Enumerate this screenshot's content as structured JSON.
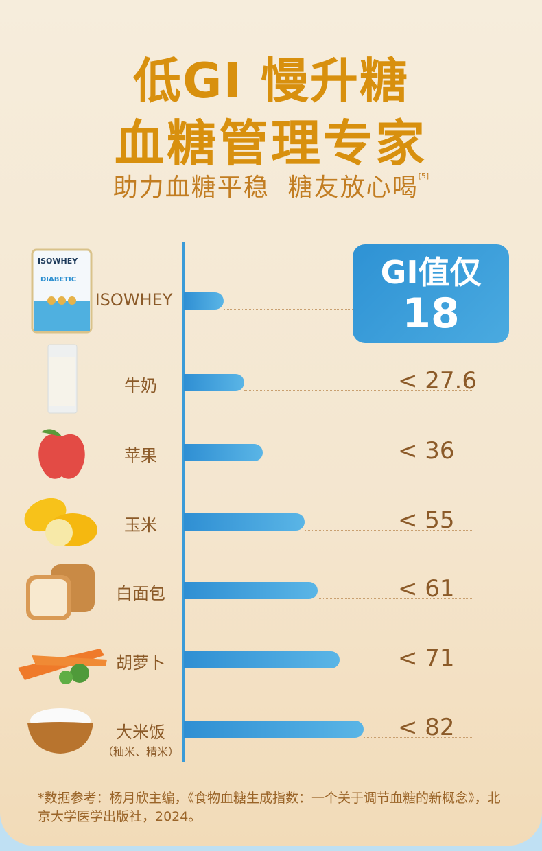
{
  "header": {
    "title_line1": "低GI 慢升糖",
    "title_line2": "血糖管理专家",
    "subtitle": "助力血糖平稳  糖友放心喝",
    "subtitle_ref": "[5]"
  },
  "badge": {
    "line1": "GI值仅",
    "line2": "18"
  },
  "colors": {
    "title": "#d8900e",
    "bar": "#2f8fd3",
    "label": "#8b5a28",
    "badge": "#2e92d4"
  },
  "chart_data": {
    "type": "bar",
    "orientation": "horizontal",
    "categories": [
      "ISOWHEY",
      "牛奶",
      "苹果",
      "玉米",
      "白面包",
      "胡萝卜",
      "大米饭"
    ],
    "category_notes": [
      "",
      "",
      "",
      "",
      "",
      "",
      "（籼米、精米）"
    ],
    "values": [
      18,
      27.6,
      36,
      55,
      61,
      71,
      82
    ],
    "value_labels": [
      "",
      "< 27.6",
      "< 36",
      "< 55",
      "< 61",
      "< 71",
      "< 82"
    ],
    "icons": [
      "isowhey-can-image",
      "milk-glass-image",
      "apple-image",
      "corn-image",
      "bread-image",
      "carrot-image",
      "rice-bowl-image"
    ]
  },
  "footnote": "*数据参考：杨月欣主编，《食物血糖生成指数：一个关于调节血糖的新概念》，北京大学医学出版社，2024。"
}
